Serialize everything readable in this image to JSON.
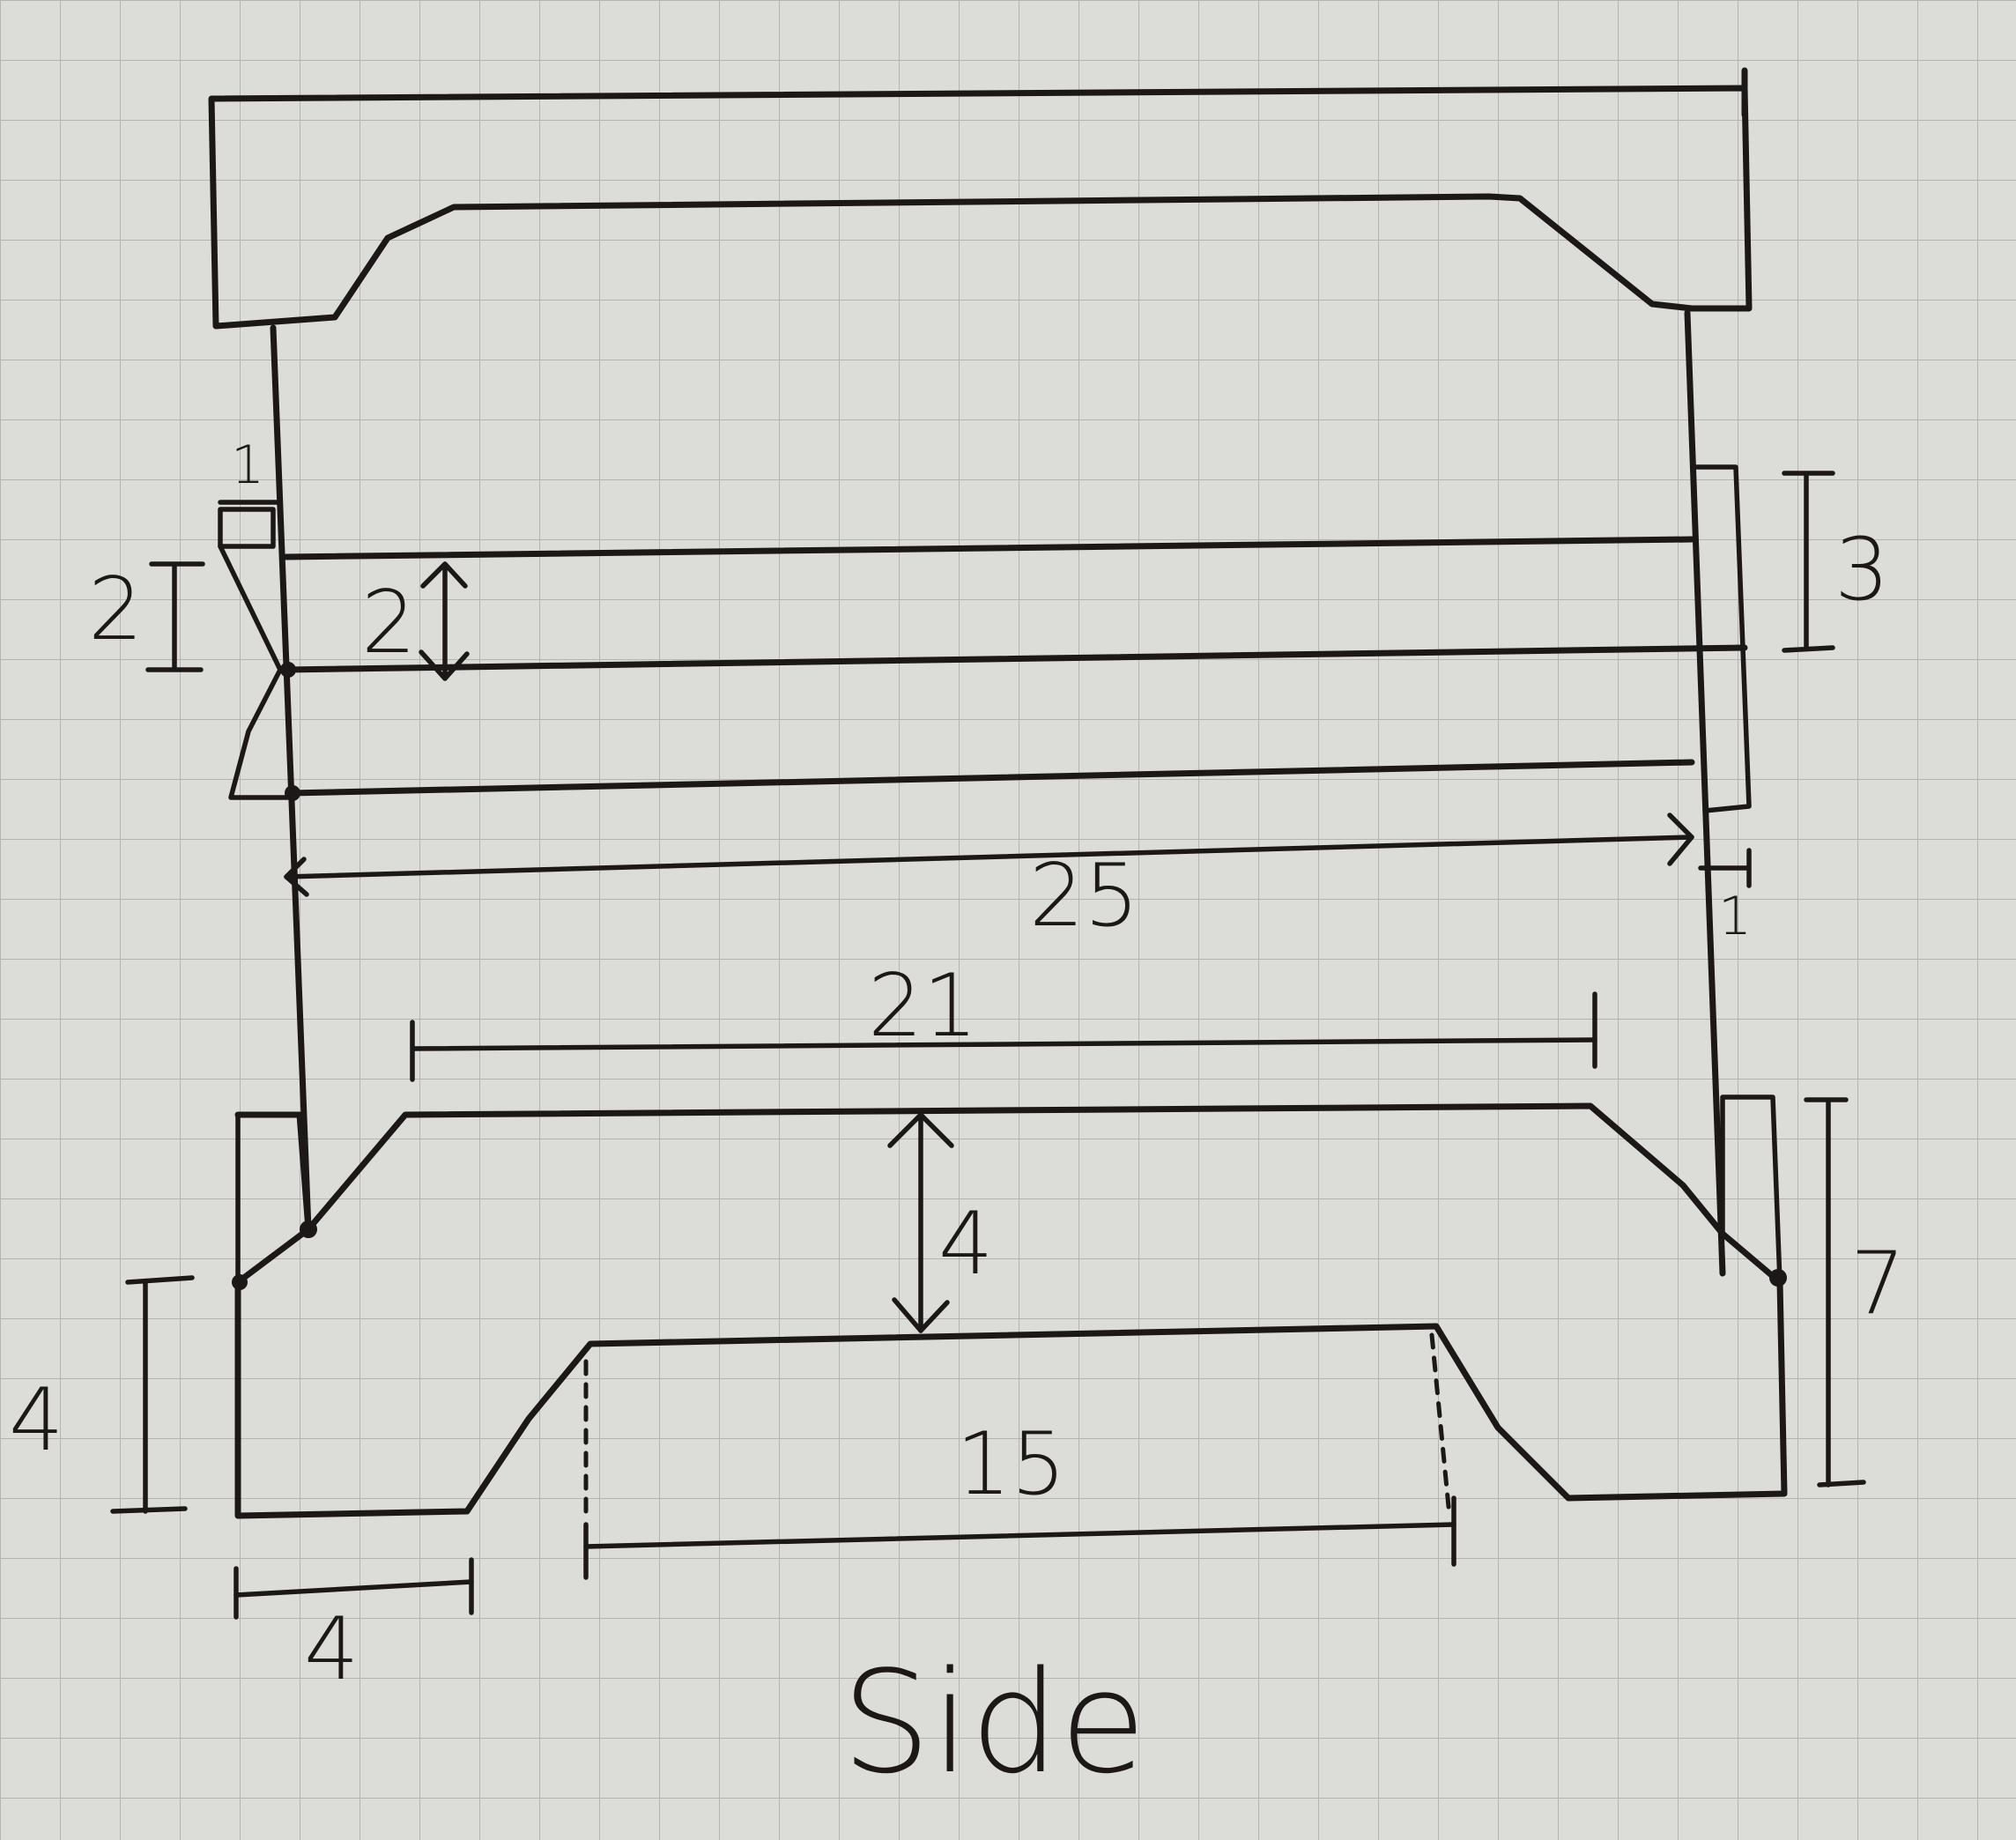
{
  "view_label": "Side",
  "dimensions": {
    "top_width": "25",
    "right_offset": "1",
    "top_left_notch": "1",
    "left_height": "2",
    "inner_gap": "2",
    "right_height": "3",
    "upper_span": "21",
    "depth": "4",
    "right_side_height": "7",
    "left_side_height": "4",
    "foot_width": "4",
    "bottom_span": "15"
  },
  "colors": {
    "ink": "#1c1818",
    "paper": "#dcdcd8",
    "grid": "#b4b4b0"
  }
}
